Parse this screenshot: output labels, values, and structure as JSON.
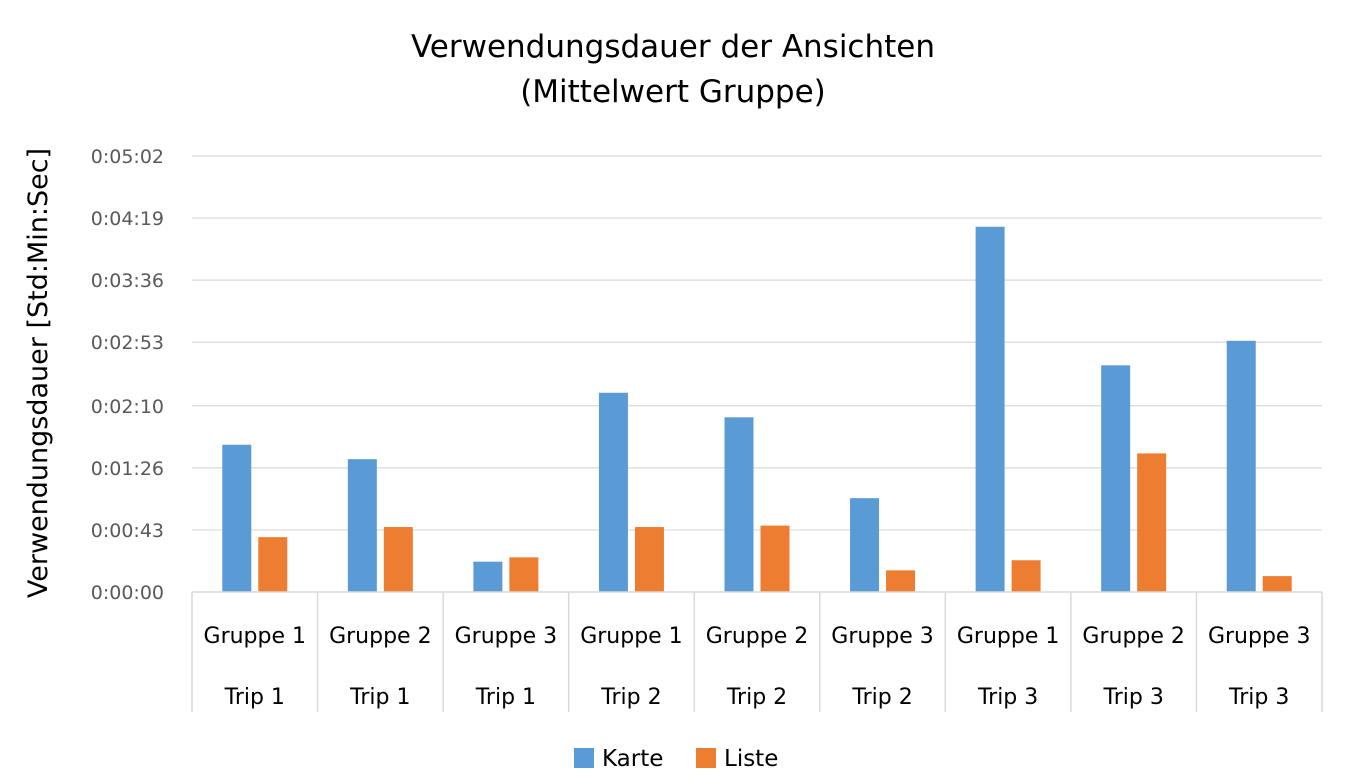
{
  "chart_data": {
    "type": "bar",
    "title": [
      "Verwendungsdauer  der Ansichten",
      "(Mittelwert Gruppe)"
    ],
    "ylabel": "Verwendungsdauer [Std:Min:Sec]",
    "y_unit": "seconds",
    "ylim": [
      0,
      302
    ],
    "y_ticks": [
      0,
      43,
      86,
      129,
      173,
      216,
      259,
      302
    ],
    "y_tick_labels": [
      "0:00:00",
      "0:00:43",
      "0:01:26",
      "0:02:10",
      "0:02:53",
      "0:03:36",
      "0:04:19",
      "0:05:02"
    ],
    "grid": true,
    "legend_position": "bottom",
    "categories": [
      {
        "group": "Gruppe 1",
        "trip": "Trip 1"
      },
      {
        "group": "Gruppe 2",
        "trip": "Trip 1"
      },
      {
        "group": "Gruppe 3",
        "trip": "Trip 1"
      },
      {
        "group": "Gruppe 1",
        "trip": "Trip 2"
      },
      {
        "group": "Gruppe 2",
        "trip": "Trip 2"
      },
      {
        "group": "Gruppe 3",
        "trip": "Trip 2"
      },
      {
        "group": "Gruppe 1",
        "trip": "Trip 3"
      },
      {
        "group": "Gruppe 2",
        "trip": "Trip 3"
      },
      {
        "group": "Gruppe 3",
        "trip": "Trip 3"
      }
    ],
    "series": [
      {
        "name": "Karte",
        "color": "#5b9bd5",
        "values": [
          102,
          92,
          21,
          138,
          121,
          65,
          253,
          157,
          174
        ]
      },
      {
        "name": "Liste",
        "color": "#ed7d31",
        "values": [
          38,
          45,
          24,
          45,
          46,
          15,
          22,
          96,
          11
        ]
      }
    ]
  }
}
